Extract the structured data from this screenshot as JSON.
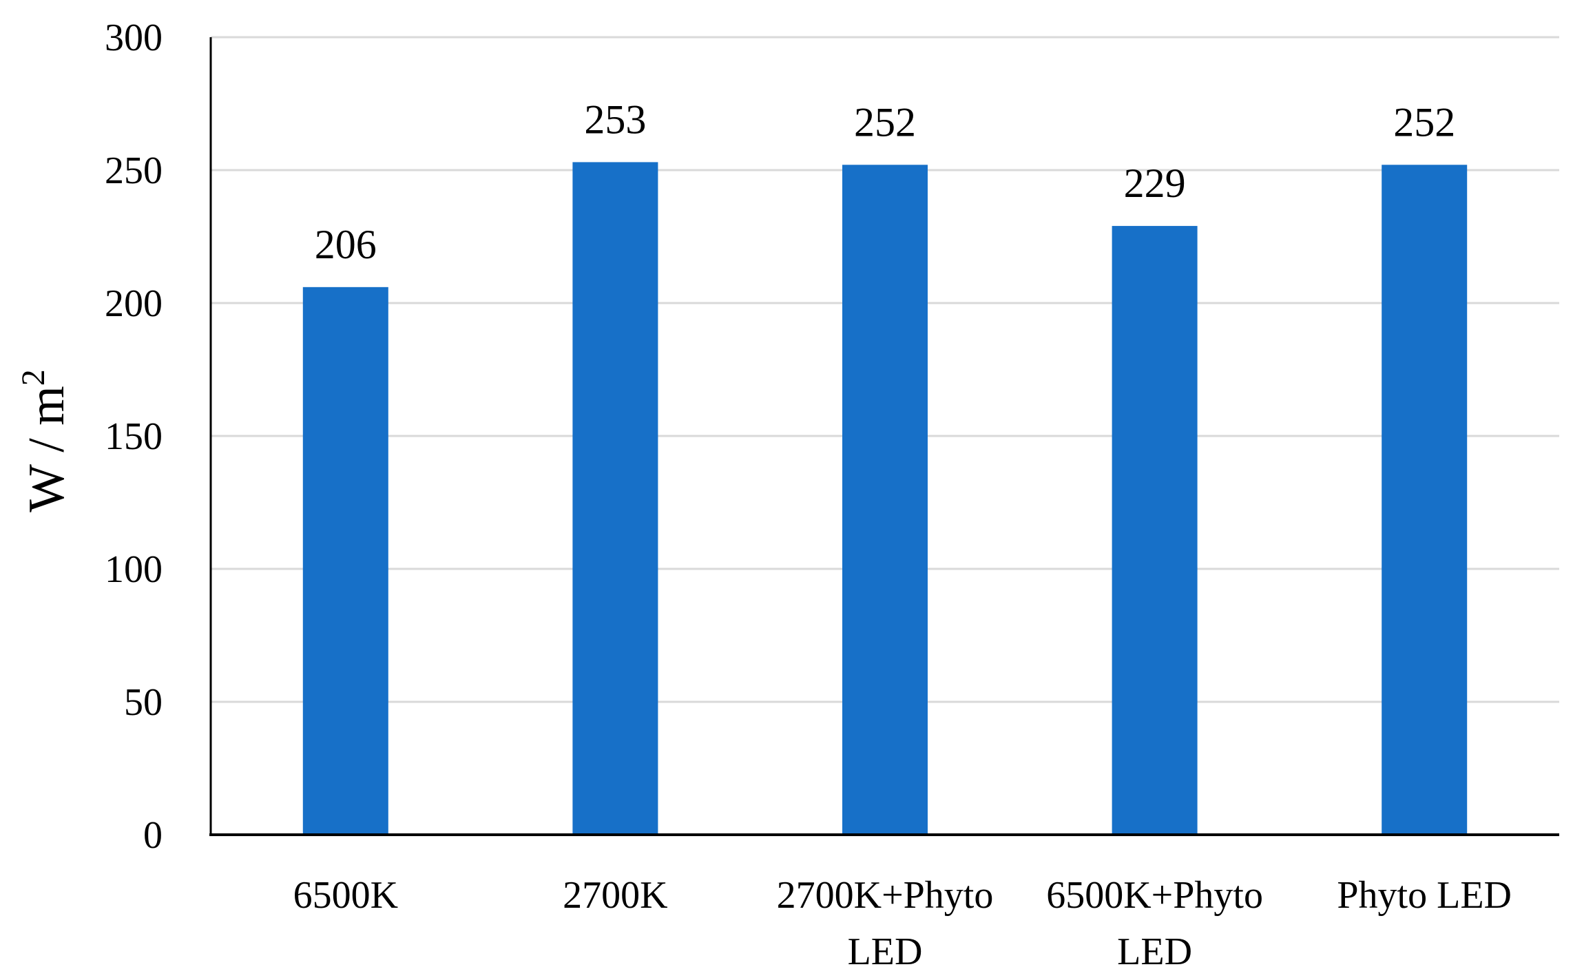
{
  "chart_data": {
    "type": "bar",
    "categories": [
      "6500K",
      "2700K",
      "2700K+Phyto LED",
      "6500K+Phyto LED",
      "Phyto LED"
    ],
    "category_lines": [
      [
        "6500K"
      ],
      [
        "2700K"
      ],
      [
        "2700K+Phyto",
        "LED"
      ],
      [
        "6500K+Phyto",
        "LED"
      ],
      [
        "Phyto LED"
      ]
    ],
    "values": [
      206,
      253,
      252,
      229,
      252
    ],
    "data_labels": [
      "206",
      "253",
      "252",
      "229",
      "252"
    ],
    "ylabel": "W / m",
    "ylabel_superscript": "2",
    "ylim": [
      0,
      300
    ],
    "yticks": [
      0,
      50,
      100,
      150,
      200,
      250,
      300
    ],
    "ytick_labels": [
      "0",
      "50",
      "100",
      "150",
      "200",
      "250",
      "300"
    ],
    "grid": true,
    "legend": "none",
    "bar_color": "#1770C8",
    "grid_color": "#D9D9D9",
    "axis_color": "#000000"
  }
}
